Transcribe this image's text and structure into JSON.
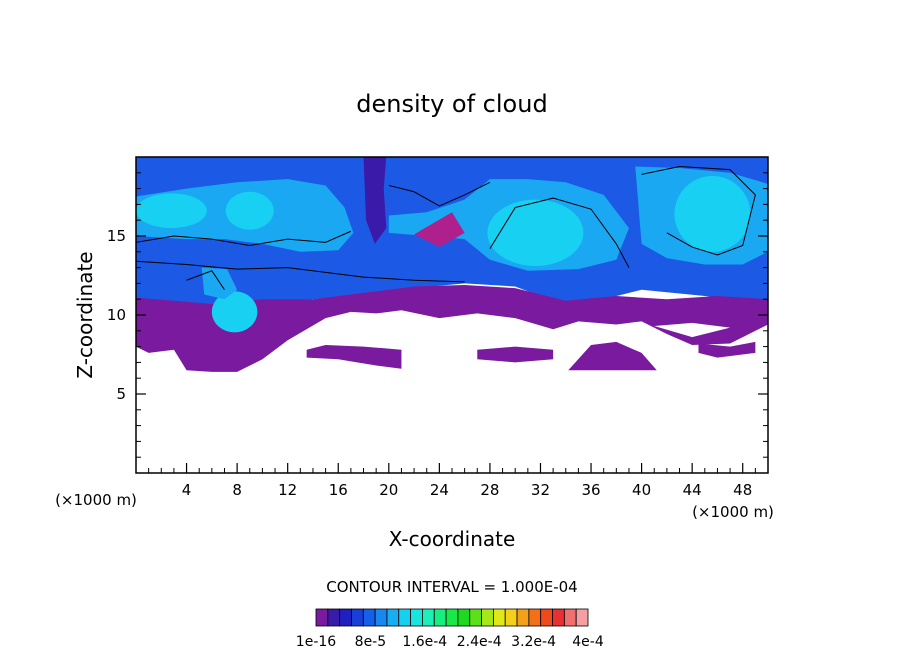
{
  "chart_data": {
    "type": "heatmap",
    "title": "density of cloud",
    "xlabel": "X-coordinate",
    "ylabel": "Z-coordinate",
    "x_unit": "(×1000 m)",
    "y_unit": "(×1000 m)",
    "xlim": [
      0,
      50
    ],
    "ylim": [
      0,
      20
    ],
    "x_ticks": [
      4,
      8,
      12,
      16,
      20,
      24,
      28,
      32,
      36,
      40,
      44,
      48
    ],
    "y_ticks": [
      5,
      10,
      15
    ],
    "contour_interval": "CONTOUR INTERVAL = 1.000E-04",
    "colorbar": {
      "colors": [
        "#7a1a9e",
        "#3a1aa8",
        "#2020c0",
        "#1a3ed8",
        "#1460e8",
        "#1a86f0",
        "#19aef2",
        "#16d0f2",
        "#18e4e0",
        "#1af0b8",
        "#16ee80",
        "#18e848",
        "#20d820",
        "#5ce01a",
        "#a4e81a",
        "#e0e81a",
        "#f4d018",
        "#f4a018",
        "#f47018",
        "#f04a1a",
        "#e83030",
        "#f07070",
        "#f4a0a0"
      ],
      "tick_labels": [
        "1e-16",
        "8e-5",
        "1.6e-4",
        "2.4e-4",
        "3.2e-4",
        "4e-4"
      ],
      "tick_values": [
        0,
        8e-05,
        0.00016,
        0.00024,
        0.00032,
        0.0004
      ]
    },
    "palette": {
      "mid_blue": "#1c5ae6",
      "light_blue": "#1aa8f2",
      "cyan": "#18d0f2",
      "violet": "#7a1a9e",
      "indigo": "#3a1aa8",
      "magenta": "#b0208c"
    }
  }
}
